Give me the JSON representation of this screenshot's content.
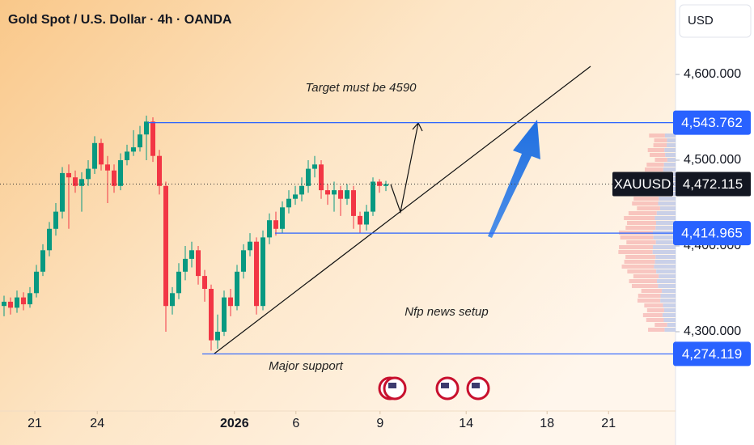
{
  "chart_data": {
    "type": "candlestick",
    "title": "Gold Spot / U.S. Dollar · 4h · OANDA",
    "symbol": "XAUUSD",
    "currency": "USD",
    "up_color": "#089981",
    "down_color": "#f23645",
    "level_color": "#2962ff",
    "open": [
      4330,
      4335,
      4328,
      4340,
      4332,
      4345,
      4370,
      4395,
      4420,
      4440,
      4485,
      4480,
      4470,
      4478,
      4490,
      4520,
      4495,
      4488,
      4470,
      4500,
      4510,
      4515,
      4530,
      4545,
      4505,
      4470,
      4330,
      4345,
      4370,
      4385,
      4395,
      4365,
      4350,
      4290,
      4300,
      4340,
      4330,
      4370,
      4395,
      4405,
      4330,
      4410,
      4430,
      4420,
      4445,
      4455,
      4460,
      4470,
      4490,
      4495,
      4465,
      4460,
      4465,
      4455,
      4465,
      4435,
      4425,
      4440,
      4475,
      4470
    ],
    "high": [
      4342,
      4340,
      4348,
      4346,
      4352,
      4378,
      4402,
      4428,
      4450,
      4492,
      4495,
      4488,
      4486,
      4500,
      4528,
      4525,
      4505,
      4495,
      4508,
      4518,
      4535,
      4540,
      4552,
      4550,
      4512,
      4475,
      4352,
      4380,
      4400,
      4405,
      4400,
      4372,
      4355,
      4320,
      4348,
      4350,
      4378,
      4402,
      4415,
      4410,
      4418,
      4438,
      4440,
      4452,
      4465,
      4470,
      4480,
      4500,
      4505,
      4500,
      4472,
      4475,
      4470,
      4472,
      4470,
      4440,
      4448,
      4480,
      4478,
      4476
    ],
    "low": [
      4318,
      4320,
      4322,
      4325,
      4328,
      4340,
      4365,
      4388,
      4412,
      4432,
      4420,
      4462,
      4440,
      4470,
      4484,
      4488,
      4450,
      4462,
      4465,
      4494,
      4505,
      4510,
      4500,
      4498,
      4460,
      4300,
      4320,
      4338,
      4360,
      4375,
      4355,
      4335,
      4278,
      4280,
      4295,
      4318,
      4325,
      4362,
      4388,
      4320,
      4325,
      4402,
      4412,
      4415,
      4438,
      4448,
      4452,
      4462,
      4480,
      4455,
      4448,
      4440,
      4435,
      4448,
      4420,
      4415,
      4418,
      4435,
      4462,
      4464
    ],
    "close": [
      4335,
      4328,
      4340,
      4332,
      4345,
      4370,
      4395,
      4420,
      4440,
      4485,
      4480,
      4470,
      4478,
      4490,
      4520,
      4495,
      4488,
      4470,
      4500,
      4510,
      4515,
      4530,
      4545,
      4505,
      4470,
      4330,
      4345,
      4370,
      4385,
      4395,
      4365,
      4350,
      4290,
      4300,
      4340,
      4330,
      4370,
      4395,
      4405,
      4330,
      4410,
      4430,
      4420,
      4445,
      4455,
      4460,
      4470,
      4490,
      4495,
      4465,
      4460,
      4465,
      4455,
      4465,
      4435,
      4425,
      4440,
      4475,
      4470,
      4472.115
    ],
    "xlim": [
      -0.625,
      103.75
    ],
    "xticks": [
      {
        "value": 4.75,
        "label": "21"
      },
      {
        "value": 14.4,
        "label": "24"
      },
      {
        "value": 35.6,
        "label": "2026"
      },
      {
        "value": 45.1,
        "label": "6"
      },
      {
        "value": 58.1,
        "label": "9"
      },
      {
        "value": 71.4,
        "label": "14"
      },
      {
        "value": 83.9,
        "label": "18"
      },
      {
        "value": 93.4,
        "label": "21"
      }
    ],
    "ylim": [
      4207.55,
      4686.79
    ],
    "yticks": [
      {
        "value": 4300,
        "label": "4,300.000"
      },
      {
        "value": 4400,
        "label": "4,400.000"
      },
      {
        "value": 4500,
        "label": "4,500.000"
      },
      {
        "value": 4600,
        "label": "4,600.000"
      }
    ],
    "levels": [
      {
        "value": 4543.762,
        "label": "4,543.762"
      },
      {
        "value": 4414.965,
        "label": "4,414.965"
      },
      {
        "value": 4274.119,
        "label": "4,274.119"
      }
    ],
    "last_price": {
      "value": 4472.115,
      "label": "4,472.115"
    },
    "annotations": [
      "Target must be 4590",
      "Nfp news setup",
      "Major support"
    ]
  }
}
